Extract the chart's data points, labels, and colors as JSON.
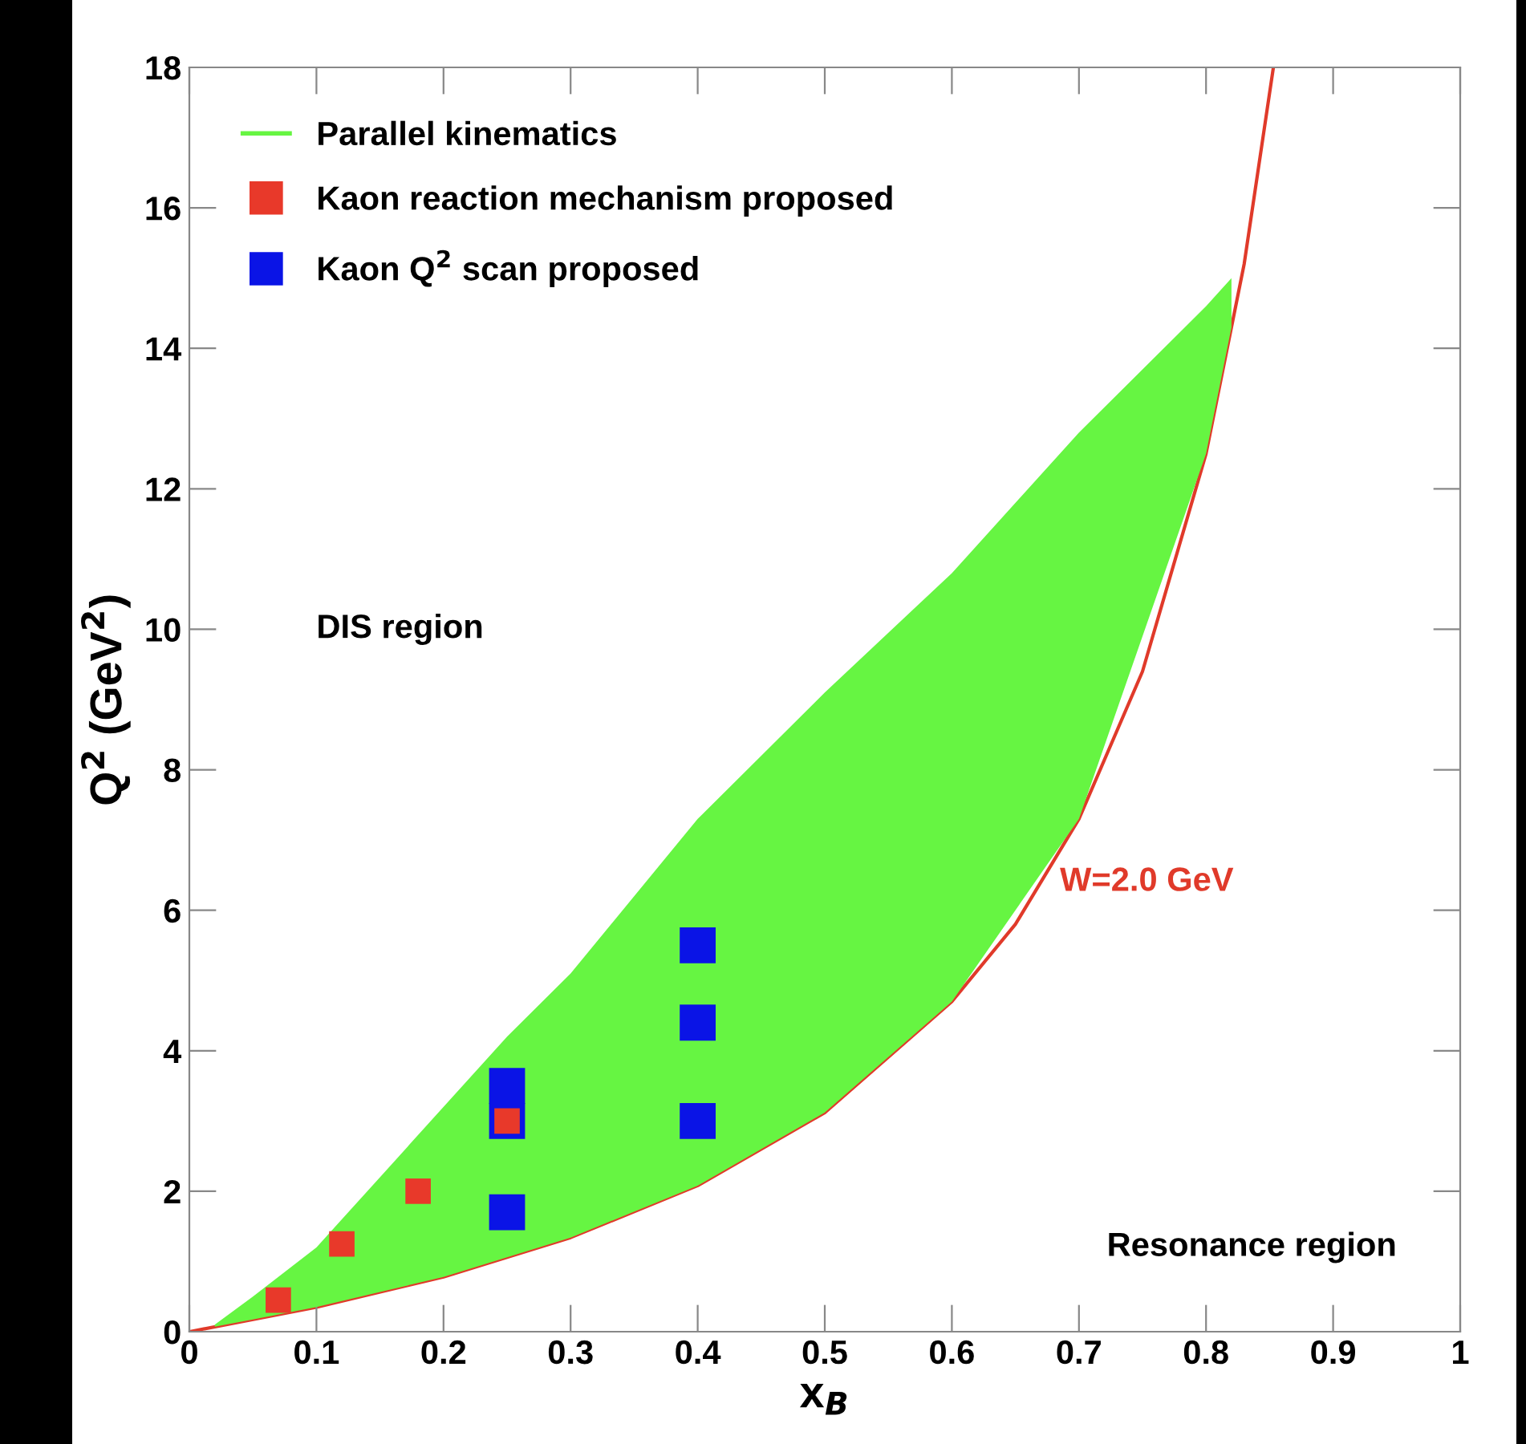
{
  "chart_data": {
    "type": "scatter",
    "xlabel": "x$_{B}$",
    "ylabel": "Q$^{2}$ (GeV$^{2}$)",
    "xlim": [
      0,
      1
    ],
    "xticks": [
      0,
      0.1,
      0.2,
      0.3,
      0.4,
      0.5,
      0.6,
      0.7,
      0.8,
      0.9,
      1
    ],
    "ylim": [
      0,
      18
    ],
    "yticks": [
      0,
      2,
      4,
      6,
      8,
      10,
      12,
      14,
      16,
      18
    ],
    "grid": false,
    "legend": "top left",
    "series": [
      {
        "name": "Parallel kinematics",
        "type": "area",
        "color": "#66f542",
        "x": [
          0.02,
          0.05,
          0.1,
          0.15,
          0.2,
          0.25,
          0.3,
          0.4,
          0.5,
          0.6,
          0.7,
          0.8,
          0.82
        ],
        "values": [
          0.1,
          0.5,
          1.2,
          2.2,
          3.2,
          4.2,
          5.1,
          7.3,
          9.1,
          10.8,
          12.8,
          14.6,
          15.0
        ]
      },
      {
        "name": "W=2.0 GeV",
        "type": "line",
        "color": "#e03a2a",
        "x": [
          0,
          0.1,
          0.2,
          0.3,
          0.4,
          0.5,
          0.6,
          0.65,
          0.7,
          0.75,
          0.8,
          0.83,
          0.853
        ],
        "values": [
          0,
          0.35,
          0.78,
          1.34,
          2.08,
          3.12,
          4.7,
          5.8,
          7.3,
          9.4,
          12.5,
          15.2,
          18
        ]
      },
      {
        "name": "Kaon reaction mechanism proposed",
        "marker": "square",
        "color": "#e8392a",
        "x": [
          0.07,
          0.12,
          0.18,
          0.25
        ],
        "values": [
          0.45,
          1.25,
          2.0,
          3.0
        ]
      },
      {
        "name": "Kaon Q$^{2}$ scan proposed",
        "marker": "square",
        "color": "#0a14e6",
        "x": [
          0.25,
          0.25,
          0.25,
          0.4,
          0.4,
          0.4
        ],
        "values": [
          1.7,
          3.0,
          3.5,
          3.0,
          4.4,
          5.5
        ]
      }
    ],
    "annotations": [
      "DIS region",
      "Resonance region"
    ]
  }
}
